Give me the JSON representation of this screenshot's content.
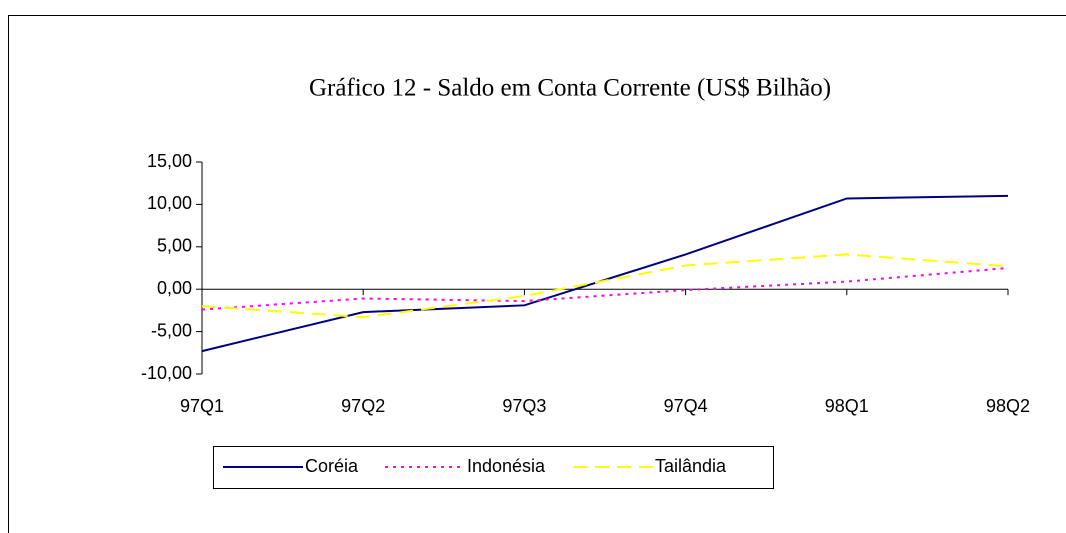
{
  "chart_data": {
    "type": "line",
    "title": "Gráfico 12 - Saldo em Conta Corrente (US$ Bilhão)",
    "categories": [
      "97Q1",
      "97Q2",
      "97Q3",
      "97Q4",
      "98Q1",
      "98Q2"
    ],
    "series": [
      {
        "name": "Coréia",
        "color": "#000080",
        "dash": "solid",
        "values": [
          -7.3,
          -2.7,
          -1.9,
          4.1,
          10.7,
          11.0
        ]
      },
      {
        "name": "Indonésia",
        "color": "#ff00ff",
        "dash": "dotted",
        "values": [
          -2.4,
          -1.1,
          -1.4,
          -0.1,
          0.9,
          2.5
        ]
      },
      {
        "name": "Tailândia",
        "color": "#ffff00",
        "dash": "dashed",
        "values": [
          -2.0,
          -3.3,
          -0.8,
          2.8,
          4.1,
          2.7
        ]
      }
    ],
    "ylim": [
      -10,
      15
    ],
    "yticks": [
      {
        "value": -10,
        "label": "-10,00"
      },
      {
        "value": -5,
        "label": "-5,00"
      },
      {
        "value": 0,
        "label": "0,00"
      },
      {
        "value": 5,
        "label": "5,00"
      },
      {
        "value": 10,
        "label": "10,00"
      },
      {
        "value": 15,
        "label": "15,00"
      }
    ],
    "legend": "bottom"
  }
}
